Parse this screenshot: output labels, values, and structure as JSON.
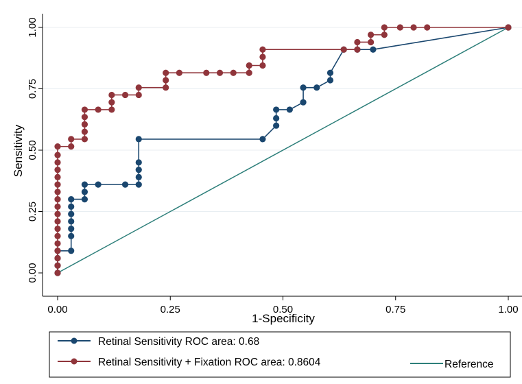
{
  "chart_data": {
    "type": "line",
    "title": "",
    "xlabel": "1-Specificity",
    "ylabel": "Sensitivity",
    "xlim": [
      0,
      1
    ],
    "ylim": [
      0,
      1
    ],
    "x_ticks": [
      "0.00",
      "0.25",
      "0.50",
      "0.75",
      "1.00"
    ],
    "y_ticks": [
      "0.00",
      "0.25",
      "0.50",
      "0.75",
      "1.00"
    ],
    "grid": true,
    "legend_position": "bottom",
    "series": [
      {
        "name": "Retinal Sensitivity ROC area: 0.68",
        "color": "#1a476f",
        "markers": true,
        "points": [
          [
            0,
            0
          ],
          [
            0,
            0.03
          ],
          [
            0,
            0.06
          ],
          [
            0,
            0.09
          ],
          [
            0.03,
            0.09
          ],
          [
            0.03,
            0.15
          ],
          [
            0.03,
            0.18
          ],
          [
            0.03,
            0.21
          ],
          [
            0.03,
            0.24
          ],
          [
            0.03,
            0.27
          ],
          [
            0.03,
            0.3
          ],
          [
            0.06,
            0.3
          ],
          [
            0.06,
            0.33
          ],
          [
            0.06,
            0.36
          ],
          [
            0.09,
            0.36
          ],
          [
            0.15,
            0.36
          ],
          [
            0.18,
            0.36
          ],
          [
            0.18,
            0.39
          ],
          [
            0.18,
            0.42
          ],
          [
            0.18,
            0.45
          ],
          [
            0.18,
            0.545
          ],
          [
            0.455,
            0.545
          ],
          [
            0.485,
            0.6
          ],
          [
            0.485,
            0.63
          ],
          [
            0.485,
            0.665
          ],
          [
            0.515,
            0.665
          ],
          [
            0.545,
            0.695
          ],
          [
            0.545,
            0.755
          ],
          [
            0.575,
            0.755
          ],
          [
            0.605,
            0.785
          ],
          [
            0.605,
            0.815
          ],
          [
            0.635,
            0.91
          ],
          [
            0.665,
            0.91
          ],
          [
            0.7,
            0.91
          ],
          [
            1,
            1
          ]
        ]
      },
      {
        "name": "Retinal Sensitivity + Fixation ROC area: 0.8604",
        "color": "#90353b",
        "markers": true,
        "points": [
          [
            0,
            0
          ],
          [
            0,
            0.03
          ],
          [
            0,
            0.06
          ],
          [
            0,
            0.09
          ],
          [
            0,
            0.12
          ],
          [
            0,
            0.15
          ],
          [
            0,
            0.18
          ],
          [
            0,
            0.21
          ],
          [
            0,
            0.24
          ],
          [
            0,
            0.27
          ],
          [
            0,
            0.3
          ],
          [
            0,
            0.33
          ],
          [
            0,
            0.36
          ],
          [
            0,
            0.39
          ],
          [
            0,
            0.42
          ],
          [
            0,
            0.45
          ],
          [
            0,
            0.48
          ],
          [
            0,
            0.515
          ],
          [
            0.03,
            0.515
          ],
          [
            0.03,
            0.545
          ],
          [
            0.06,
            0.545
          ],
          [
            0.06,
            0.575
          ],
          [
            0.06,
            0.605
          ],
          [
            0.06,
            0.635
          ],
          [
            0.06,
            0.665
          ],
          [
            0.09,
            0.665
          ],
          [
            0.12,
            0.665
          ],
          [
            0.12,
            0.695
          ],
          [
            0.12,
            0.725
          ],
          [
            0.15,
            0.725
          ],
          [
            0.18,
            0.725
          ],
          [
            0.18,
            0.755
          ],
          [
            0.24,
            0.755
          ],
          [
            0.24,
            0.785
          ],
          [
            0.24,
            0.815
          ],
          [
            0.27,
            0.815
          ],
          [
            0.33,
            0.815
          ],
          [
            0.36,
            0.815
          ],
          [
            0.39,
            0.815
          ],
          [
            0.425,
            0.815
          ],
          [
            0.425,
            0.845
          ],
          [
            0.455,
            0.845
          ],
          [
            0.455,
            0.88
          ],
          [
            0.455,
            0.91
          ],
          [
            0.635,
            0.91
          ],
          [
            0.665,
            0.91
          ],
          [
            0.665,
            0.94
          ],
          [
            0.695,
            0.94
          ],
          [
            0.695,
            0.97
          ],
          [
            0.725,
            0.97
          ],
          [
            0.725,
            1
          ],
          [
            0.76,
            1
          ],
          [
            0.79,
            1
          ],
          [
            0.82,
            1
          ],
          [
            1,
            1
          ]
        ]
      },
      {
        "name": "Reference",
        "color": "#2d7f7a",
        "markers": false,
        "points": [
          [
            0,
            0
          ],
          [
            1,
            1
          ]
        ]
      }
    ]
  }
}
